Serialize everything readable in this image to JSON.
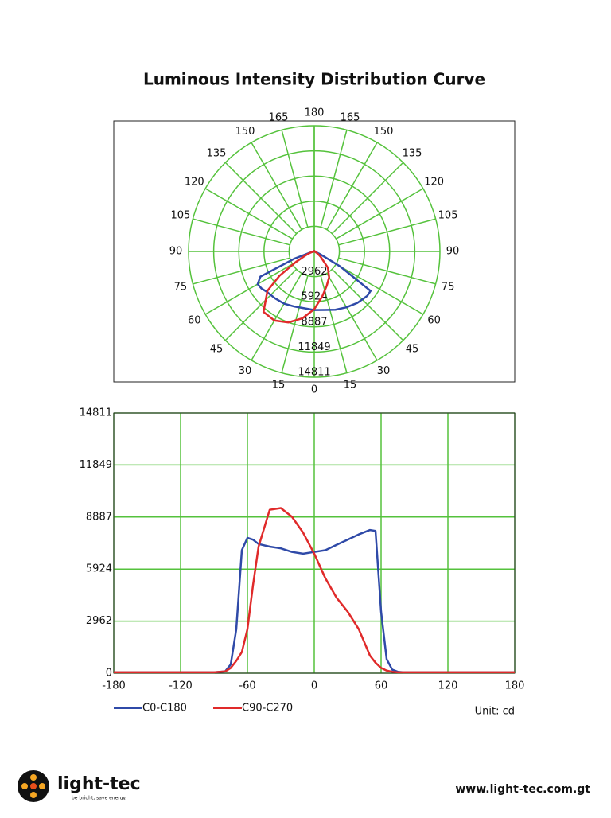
{
  "title": "Luminous Intensity Distribution Curve",
  "chart_data": [
    {
      "type": "polar",
      "angles": [
        0,
        15,
        30,
        45,
        60,
        75,
        90,
        105,
        120,
        135,
        150,
        165,
        180
      ],
      "rlim": [
        0,
        14811
      ],
      "rticks": [
        2962,
        5924,
        8887,
        11849,
        14811
      ],
      "grid_color": "#55c23c"
    },
    {
      "type": "line",
      "x": [
        -180,
        -150,
        -120,
        -100,
        -90,
        -80,
        -75,
        -70,
        -65,
        -60,
        -55,
        -50,
        -40,
        -30,
        -20,
        -10,
        0,
        10,
        20,
        30,
        40,
        50,
        55,
        60,
        65,
        70,
        75,
        80,
        90,
        100,
        120,
        150,
        180
      ],
      "series": [
        {
          "name": "C0-C180",
          "color": "#2f4aa8",
          "values": [
            50,
            50,
            50,
            50,
            50,
            100,
            500,
            2500,
            7000,
            7700,
            7600,
            7350,
            7200,
            7100,
            6900,
            6800,
            6900,
            7000,
            7300,
            7600,
            7900,
            8150,
            8100,
            3500,
            800,
            200,
            80,
            50,
            50,
            50,
            50,
            50,
            50
          ]
        },
        {
          "name": "C90-C270",
          "color": "#e02a2a",
          "values": [
            50,
            50,
            50,
            50,
            50,
            100,
            300,
            700,
            1200,
            2500,
            5000,
            7200,
            9300,
            9400,
            8900,
            8000,
            6800,
            5400,
            4300,
            3500,
            2500,
            1000,
            600,
            300,
            150,
            80,
            50,
            50,
            50,
            50,
            50,
            50,
            50
          ]
        }
      ],
      "xlim": [
        -180,
        180
      ],
      "xticks": [
        -180,
        -120,
        -60,
        0,
        60,
        120,
        180
      ],
      "ylim": [
        0,
        14811
      ],
      "yticks": [
        0,
        2962,
        5924,
        8887,
        11849,
        14811
      ],
      "grid": true,
      "grid_color": "#55c23c",
      "unit": "Unit: cd"
    }
  ],
  "footer": {
    "brand": "light-tec",
    "slogan": "be bright, save energy.",
    "url": "www.light-tec.com.gt"
  }
}
